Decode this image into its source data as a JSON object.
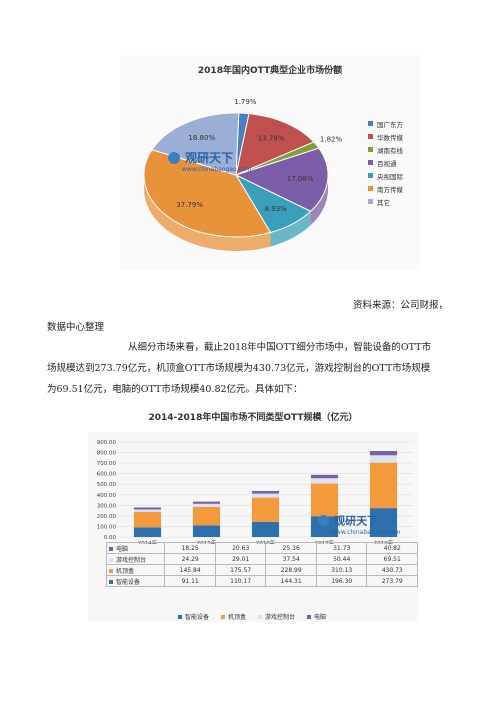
{
  "pie_chart": {
    "title": "2018年国内OTT典型企业市场份额",
    "colors": {
      "国广东方": "#4a7fc1",
      "华数传媒": "#c0504d",
      "湖南有线": "#7f9f3a",
      "百视通": "#7b5ea7",
      "央视国际": "#3a9fb8",
      "南方传媒": "#e8923a",
      "其它": "#9aaed6"
    },
    "chart_data": {
      "type": "pie",
      "title": "2018年国内OTT典型企业市场份额",
      "categories": [
        "国广东方",
        "华数传媒",
        "湖南有线",
        "百视通",
        "央视国际",
        "南方传媒",
        "其它"
      ],
      "values": [
        1.79,
        13.79,
        1.82,
        17.08,
        8.93,
        37.79,
        18.8
      ],
      "value_labels": [
        "1.79%",
        "13.79%",
        "1.82%",
        "17.08%",
        "8.93%",
        "37.79%",
        "18.80%"
      ],
      "legend_position": "right"
    }
  },
  "watermark": {
    "brand": "观研天下",
    "url": "www.chinabaogao.com"
  },
  "source_line": "资料来源：公司财报，",
  "paragraph": {
    "line1": "数据中心整理",
    "line2": "从细分市场来看，截止2018年中国OTT细分市场中，智能设备的OTT市",
    "line3": "场规模达到273.79亿元，机顶盒OTT市场规模为430.73亿元，游戏控制台的OTT市场规模",
    "line4": "为69.51亿元，电脑的OTT市场规模40.82亿元。具体如下："
  },
  "bar_chart": {
    "title": "2014-2018年中国市场不同类型OTT规模（亿元）",
    "chart_data": {
      "type": "bar",
      "stacked": true,
      "title": "2014-2018年中国市场不同类型OTT规模（亿元）",
      "categories": [
        "2014年",
        "2015年",
        "2016年",
        "2017年",
        "2018年"
      ],
      "ylim": [
        0,
        900
      ],
      "y_ticks": [
        "0.00",
        "100.00",
        "200.00",
        "300.00",
        "400.00",
        "500.00",
        "600.00",
        "700.00",
        "800.00",
        "900.00"
      ],
      "series": [
        {
          "name": "智能设备",
          "color": "#2e6fad",
          "values": [
            91.11,
            110.17,
            144.31,
            196.3,
            273.79
          ],
          "labels": [
            "91.11",
            "110.17",
            "144.31",
            "196.30",
            "273.79"
          ]
        },
        {
          "name": "机顶盒",
          "color": "#f29a3c",
          "values": [
            145.84,
            175.57,
            228.99,
            310.13,
            430.73
          ],
          "labels": [
            "145.84",
            "175.57",
            "228.99",
            "310.13",
            "430.73"
          ]
        },
        {
          "name": "游戏控制台",
          "color": "#d9e4f2",
          "values": [
            24.29,
            29.01,
            37.54,
            50.44,
            69.51
          ],
          "labels": [
            "24.29",
            "29.01",
            "37.54",
            "50.44",
            "69.51"
          ]
        },
        {
          "name": "电脑",
          "color": "#7b5ea7",
          "values": [
            18.25,
            20.63,
            25.16,
            31.73,
            40.82
          ],
          "labels": [
            "18.25",
            "20.63",
            "25.16",
            "31.73",
            "40.82"
          ]
        }
      ],
      "table_row_order": [
        "电脑",
        "游戏控制台",
        "机顶盒",
        "智能设备"
      ],
      "legend_position": "bottom",
      "grid": true
    }
  }
}
